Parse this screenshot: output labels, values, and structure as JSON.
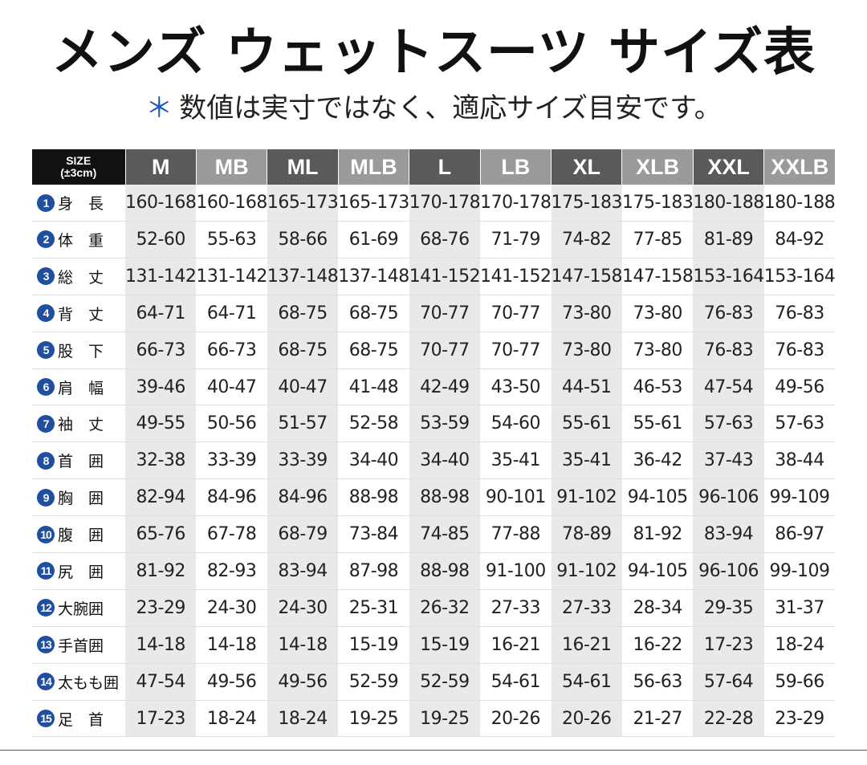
{
  "title": "メンズ ウェットスーツ サイズ表",
  "subtitle": {
    "mark": "＊",
    "text": "数値は実寸ではなく、適応サイズ目安です。"
  },
  "table": {
    "corner": {
      "line1": "SIZE",
      "line2": "(±3cm)"
    },
    "sizes": [
      "M",
      "MB",
      "ML",
      "MLB",
      "L",
      "LB",
      "XL",
      "XLB",
      "XXL",
      "XXLB"
    ],
    "rows": [
      {
        "num": "1",
        "label": "身　長",
        "values": [
          "160-168",
          "160-168",
          "165-173",
          "165-173",
          "170-178",
          "170-178",
          "175-183",
          "175-183",
          "180-188",
          "180-188"
        ]
      },
      {
        "num": "2",
        "label": "体　重",
        "values": [
          "52-60",
          "55-63",
          "58-66",
          "61-69",
          "68-76",
          "71-79",
          "74-82",
          "77-85",
          "81-89",
          "84-92"
        ]
      },
      {
        "num": "3",
        "label": "総　丈",
        "values": [
          "131-142",
          "131-142",
          "137-148",
          "137-148",
          "141-152",
          "141-152",
          "147-158",
          "147-158",
          "153-164",
          "153-164"
        ]
      },
      {
        "num": "4",
        "label": "背　丈",
        "values": [
          "64-71",
          "64-71",
          "68-75",
          "68-75",
          "70-77",
          "70-77",
          "73-80",
          "73-80",
          "76-83",
          "76-83"
        ]
      },
      {
        "num": "5",
        "label": "股　下",
        "values": [
          "66-73",
          "66-73",
          "68-75",
          "68-75",
          "70-77",
          "70-77",
          "73-80",
          "73-80",
          "76-83",
          "76-83"
        ]
      },
      {
        "num": "6",
        "label": "肩　幅",
        "values": [
          "39-46",
          "40-47",
          "40-47",
          "41-48",
          "42-49",
          "43-50",
          "44-51",
          "46-53",
          "47-54",
          "49-56"
        ]
      },
      {
        "num": "7",
        "label": "袖　丈",
        "values": [
          "49-55",
          "50-56",
          "51-57",
          "52-58",
          "53-59",
          "54-60",
          "55-61",
          "55-61",
          "57-63",
          "57-63"
        ]
      },
      {
        "num": "8",
        "label": "首　囲",
        "values": [
          "32-38",
          "33-39",
          "33-39",
          "34-40",
          "34-40",
          "35-41",
          "35-41",
          "36-42",
          "37-43",
          "38-44"
        ]
      },
      {
        "num": "9",
        "label": "胸　囲",
        "values": [
          "82-94",
          "84-96",
          "84-96",
          "88-98",
          "88-98",
          "90-101",
          "91-102",
          "94-105",
          "96-106",
          "99-109"
        ]
      },
      {
        "num": "10",
        "label": "腹　囲",
        "values": [
          "65-76",
          "67-78",
          "68-79",
          "73-84",
          "74-85",
          "77-88",
          "78-89",
          "81-92",
          "83-94",
          "86-97"
        ]
      },
      {
        "num": "11",
        "label": "尻　囲",
        "values": [
          "81-92",
          "82-93",
          "83-94",
          "87-98",
          "88-98",
          "91-100",
          "91-102",
          "94-105",
          "96-106",
          "99-109"
        ]
      },
      {
        "num": "12",
        "label": "大腕囲",
        "values": [
          "23-29",
          "24-30",
          "24-30",
          "25-31",
          "26-32",
          "27-33",
          "27-33",
          "28-34",
          "29-35",
          "31-37"
        ]
      },
      {
        "num": "13",
        "label": "手首囲",
        "values": [
          "14-18",
          "14-18",
          "14-18",
          "15-19",
          "15-19",
          "16-21",
          "16-21",
          "16-22",
          "17-23",
          "18-24"
        ]
      },
      {
        "num": "14",
        "label": "太もも囲",
        "values": [
          "47-54",
          "49-56",
          "49-56",
          "52-59",
          "52-59",
          "54-61",
          "54-61",
          "56-63",
          "57-64",
          "59-66"
        ]
      },
      {
        "num": "15",
        "label": "足　首",
        "values": [
          "17-23",
          "18-24",
          "18-24",
          "19-25",
          "19-25",
          "20-26",
          "20-26",
          "21-27",
          "22-28",
          "23-29"
        ]
      }
    ]
  },
  "colors": {
    "header_dark": "#5a5a5a",
    "header_light": "#9a9a9a",
    "corner": "#111111",
    "shade": "#e9e9e9",
    "badge": "#1f4f9e"
  }
}
